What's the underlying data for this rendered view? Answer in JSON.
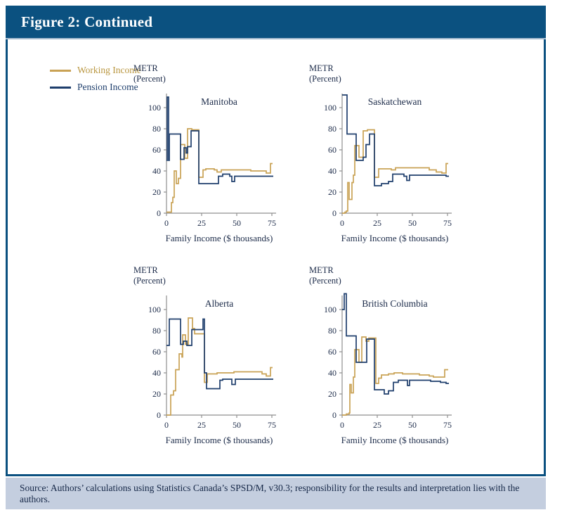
{
  "header": {
    "title": "Figure 2: Continued"
  },
  "legend": {
    "position": "top-left",
    "items": [
      {
        "label": "Working Income",
        "color": "#c9a255"
      },
      {
        "label": "Pension Income",
        "color": "#1e3e6c"
      }
    ]
  },
  "axis": {
    "metr_label": [
      "METR",
      "(Percent)"
    ],
    "xlabel": "Family Income ($ thousands)",
    "y_ticks": [
      0,
      20,
      40,
      60,
      80,
      100
    ],
    "x_ticks": [
      0,
      25,
      50,
      75
    ],
    "ylim": [
      0,
      112
    ],
    "xlim": [
      0,
      78
    ],
    "grid": false
  },
  "chart_data": [
    {
      "type": "line",
      "style": "step",
      "title": "Manitoba",
      "xlabel": "Family Income ($ thousands)",
      "ylabel": "METR (Percent)",
      "series": [
        {
          "name": "Working Income",
          "color": "#c9a255",
          "x_end": 75.5,
          "points": [
            [
              0,
              1
            ],
            [
              3.5,
              10
            ],
            [
              4.5,
              15
            ],
            [
              5.5,
              40
            ],
            [
              7,
              28
            ],
            [
              8.5,
              33
            ],
            [
              10,
              65
            ],
            [
              13,
              52
            ],
            [
              15,
              80
            ],
            [
              18,
              79
            ],
            [
              23,
              34
            ],
            [
              26,
              41
            ],
            [
              28,
              42
            ],
            [
              34,
              41
            ],
            [
              36,
              39
            ],
            [
              39,
              41
            ],
            [
              60,
              40
            ],
            [
              71,
              38
            ],
            [
              74,
              47
            ]
          ]
        },
        {
          "name": "Pension Income",
          "color": "#1e3e6c",
          "x_end": 76,
          "points": [
            [
              0,
              50
            ],
            [
              0.5,
              110
            ],
            [
              1.5,
              50
            ],
            [
              2,
              75
            ],
            [
              10,
              51
            ],
            [
              12.5,
              62
            ],
            [
              14,
              57
            ],
            [
              15,
              63
            ],
            [
              17.5,
              78
            ],
            [
              23,
              28
            ],
            [
              37,
              35
            ],
            [
              40,
              37
            ],
            [
              45,
              35
            ],
            [
              46.5,
              30
            ],
            [
              48.5,
              35
            ]
          ]
        }
      ]
    },
    {
      "type": "line",
      "style": "step",
      "title": "Saskatchewan",
      "xlabel": "Family Income ($ thousands)",
      "ylabel": "METR (Percent)",
      "series": [
        {
          "name": "Working Income",
          "color": "#c9a255",
          "x_end": 75.5,
          "points": [
            [
              0,
              0
            ],
            [
              2,
              1
            ],
            [
              3,
              2
            ],
            [
              4,
              29
            ],
            [
              5,
              13
            ],
            [
              7,
              29
            ],
            [
              8,
              36
            ],
            [
              9,
              64
            ],
            [
              12,
              53
            ],
            [
              15,
              78
            ],
            [
              18,
              79
            ],
            [
              23,
              34
            ],
            [
              26,
              42
            ],
            [
              35,
              41
            ],
            [
              38,
              43
            ],
            [
              62,
              41
            ],
            [
              67,
              39
            ],
            [
              71,
              38
            ],
            [
              74,
              47
            ]
          ]
        },
        {
          "name": "Pension Income",
          "color": "#1e3e6c",
          "x_end": 76,
          "points": [
            [
              0,
              112
            ],
            [
              3.5,
              75
            ],
            [
              10,
              50
            ],
            [
              15,
              53
            ],
            [
              17,
              65
            ],
            [
              19.5,
              75
            ],
            [
              23,
              26
            ],
            [
              28,
              28
            ],
            [
              33,
              30
            ],
            [
              36,
              37
            ],
            [
              44,
              35
            ],
            [
              46,
              31
            ],
            [
              48,
              36
            ],
            [
              74,
              35
            ]
          ]
        }
      ]
    },
    {
      "type": "line",
      "style": "step",
      "title": "Alberta",
      "xlabel": "Family Income ($ thousands)",
      "ylabel": "METR (Percent)",
      "series": [
        {
          "name": "Working Income",
          "color": "#c9a255",
          "x_end": 75.5,
          "points": [
            [
              0,
              0
            ],
            [
              3,
              19
            ],
            [
              5,
              23
            ],
            [
              6.5,
              43
            ],
            [
              9,
              58
            ],
            [
              11,
              55
            ],
            [
              11.5,
              76
            ],
            [
              13.5,
              67
            ],
            [
              15.5,
              92
            ],
            [
              18.5,
              82
            ],
            [
              20,
              77
            ],
            [
              27,
              31
            ],
            [
              29,
              39
            ],
            [
              36,
              40
            ],
            [
              48,
              41
            ],
            [
              68,
              39
            ],
            [
              71,
              37
            ],
            [
              74,
              45
            ]
          ]
        },
        {
          "name": "Pension Income",
          "color": "#1e3e6c",
          "x_end": 76,
          "points": [
            [
              0,
              66
            ],
            [
              2,
              91
            ],
            [
              10,
              67
            ],
            [
              12,
              70
            ],
            [
              14.5,
              66
            ],
            [
              18,
              81
            ],
            [
              26,
              91
            ],
            [
              27,
              40
            ],
            [
              28.5,
              25
            ],
            [
              38,
              33
            ],
            [
              40,
              34
            ],
            [
              46.5,
              29
            ],
            [
              49,
              34
            ]
          ]
        }
      ]
    },
    {
      "type": "line",
      "style": "step",
      "title": "British Columbia",
      "xlabel": "Family Income ($ thousands)",
      "ylabel": "METR (Percent)",
      "series": [
        {
          "name": "Working Income",
          "color": "#c9a255",
          "x_end": 75.5,
          "points": [
            [
              0,
              0
            ],
            [
              3,
              1
            ],
            [
              5,
              2
            ],
            [
              5.5,
              29
            ],
            [
              6.5,
              21
            ],
            [
              8,
              36
            ],
            [
              9,
              62
            ],
            [
              12,
              50
            ],
            [
              14,
              74
            ],
            [
              17,
              70
            ],
            [
              19,
              73
            ],
            [
              24,
              30
            ],
            [
              26,
              35
            ],
            [
              28,
              38
            ],
            [
              33,
              39
            ],
            [
              37,
              40
            ],
            [
              43,
              39
            ],
            [
              55,
              38
            ],
            [
              62,
              37
            ],
            [
              65,
              36
            ],
            [
              73,
              43
            ]
          ]
        },
        {
          "name": "Pension Income",
          "color": "#1e3e6c",
          "x_end": 76,
          "points": [
            [
              0,
              100
            ],
            [
              1.5,
              115
            ],
            [
              3,
              75
            ],
            [
              10,
              50
            ],
            [
              17.5,
              72
            ],
            [
              23,
              24
            ],
            [
              30,
              20
            ],
            [
              33,
              23
            ],
            [
              36.5,
              31
            ],
            [
              40,
              33
            ],
            [
              46.5,
              28
            ],
            [
              48,
              33
            ],
            [
              63,
              32
            ],
            [
              70,
              31
            ],
            [
              74,
              30
            ]
          ]
        }
      ]
    }
  ],
  "source": {
    "text": "Source: Authors’ calculations using Statistics Canada’s SPSD/M, v30.3; responsibility for the results and interpretation lies with the authors."
  },
  "colors": {
    "header_bg": "#0b5180",
    "border": "#0b5180",
    "separator": "#a9bdd1",
    "source_bg": "#c4cedf",
    "source_text": "#152747",
    "axis": "#8f8f8f",
    "chart_text": "#1c2b49",
    "working": "#c9a255",
    "pension": "#1e3e6c"
  }
}
